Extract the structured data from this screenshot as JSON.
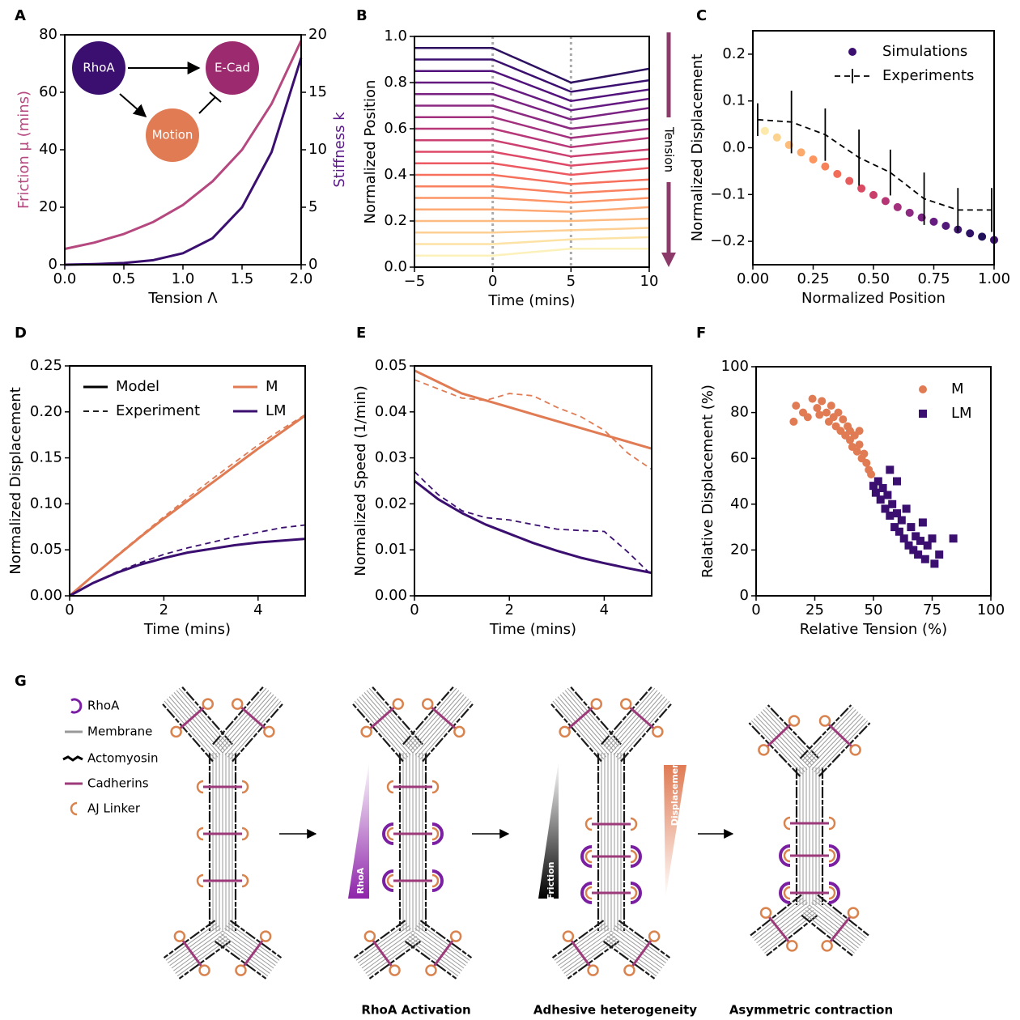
{
  "chart_data": [
    {
      "panel": "A",
      "type": "line",
      "xlabel": "Tension Λ",
      "ylabel": "Friction μ (mins)",
      "ylabel_color": "#b5487f",
      "y2label": "Stiffness k",
      "y2label_color": "#5b1a8a",
      "x": [
        0,
        0.25,
        0.5,
        0.75,
        1,
        1.25,
        1.5,
        1.75,
        2
      ],
      "xlim": [
        0,
        2
      ],
      "xticks": [
        {
          "value": 0,
          "label": "0.0"
        },
        {
          "value": 0.5,
          "label": "0.5"
        },
        {
          "value": 1,
          "label": "1.0"
        },
        {
          "value": 1.5,
          "label": "1.5"
        },
        {
          "value": 2,
          "label": "2.0"
        }
      ],
      "ylim": [
        0,
        80
      ],
      "yticks": [
        0,
        20,
        40,
        60,
        80
      ],
      "y2lim": [
        0,
        20
      ],
      "y2ticks": [
        0,
        5,
        10,
        15,
        20
      ],
      "series": [
        {
          "color": "#b5487f",
          "values": [
            5.5,
            7.7,
            10.7,
            14.9,
            20.8,
            29,
            40,
            56,
            78
          ]
        },
        {
          "color": "#3b0f70",
          "axis": "y2",
          "values": [
            0,
            0.05,
            0.15,
            0.4,
            1,
            2.3,
            5,
            9.8,
            18
          ]
        }
      ],
      "inset": {
        "nodes": [
          {
            "label": "RhoA",
            "color": "#3b0f70"
          },
          {
            "label": "E-Cad",
            "color": "#9c2a6e"
          },
          {
            "label": "Motion",
            "color": "#e07b54"
          }
        ]
      }
    },
    {
      "panel": "B",
      "type": "line",
      "xlabel": "Time (mins)",
      "ylabel": "Normalized Position",
      "annotation": "Tension",
      "annotation_color": "#8c3a6a",
      "x": [
        -5,
        0,
        5,
        10
      ],
      "xlim": [
        -5,
        10
      ],
      "xticks": [
        {
          "value": -5,
          "label": "−5"
        },
        0,
        5,
        10
      ],
      "ylim": [
        0,
        1
      ],
      "yticks": [
        {
          "value": 0,
          "label": "0.0"
        },
        {
          "value": 0.2,
          "label": "0.2"
        },
        {
          "value": 0.4,
          "label": "0.4"
        },
        {
          "value": 0.6,
          "label": "0.6"
        },
        {
          "value": 0.8,
          "label": "0.8"
        },
        {
          "value": 1,
          "label": "1.0"
        }
      ],
      "vlines": [
        0,
        5
      ],
      "vline_color": "#aaaaaa",
      "series": [
        {
          "color": "#2d1160",
          "values": [
            0.95,
            0.95,
            0.8,
            0.86
          ]
        },
        {
          "color": "#3b0f70",
          "values": [
            0.9,
            0.9,
            0.76,
            0.81
          ]
        },
        {
          "color": "#51127c",
          "values": [
            0.85,
            0.85,
            0.72,
            0.77
          ]
        },
        {
          "color": "#641a80",
          "values": [
            0.8,
            0.8,
            0.68,
            0.73
          ]
        },
        {
          "color": "#7a2282",
          "values": [
            0.75,
            0.75,
            0.64,
            0.69
          ]
        },
        {
          "color": "#8c2981",
          "values": [
            0.7,
            0.7,
            0.6,
            0.64
          ]
        },
        {
          "color": "#a3307e",
          "values": [
            0.65,
            0.65,
            0.56,
            0.6
          ]
        },
        {
          "color": "#b73779",
          "values": [
            0.6,
            0.6,
            0.52,
            0.56
          ]
        },
        {
          "color": "#cc3f71",
          "values": [
            0.55,
            0.55,
            0.48,
            0.51
          ]
        },
        {
          "color": "#de4968",
          "values": [
            0.5,
            0.5,
            0.44,
            0.47
          ]
        },
        {
          "color": "#ec5960",
          "values": [
            0.45,
            0.45,
            0.4,
            0.43
          ]
        },
        {
          "color": "#f6705c",
          "values": [
            0.4,
            0.4,
            0.36,
            0.38
          ]
        },
        {
          "color": "#fa815f",
          "values": [
            0.35,
            0.35,
            0.32,
            0.34
          ]
        },
        {
          "color": "#fd9567",
          "values": [
            0.3,
            0.3,
            0.28,
            0.3
          ]
        },
        {
          "color": "#fea973",
          "values": [
            0.25,
            0.25,
            0.24,
            0.26
          ]
        },
        {
          "color": "#febb81",
          "values": [
            0.2,
            0.2,
            0.2,
            0.21
          ]
        },
        {
          "color": "#fecf92",
          "values": [
            0.15,
            0.15,
            0.16,
            0.17
          ]
        },
        {
          "color": "#fde2a5",
          "values": [
            0.1,
            0.1,
            0.12,
            0.13
          ]
        },
        {
          "color": "#fcf1bb",
          "values": [
            0.05,
            0.05,
            0.08,
            0.08
          ]
        }
      ]
    },
    {
      "panel": "C",
      "type": "scatter",
      "xlabel": "Normalized Position",
      "ylabel": "Normalized Displacement",
      "legend": "upper right",
      "xlim": [
        0,
        1
      ],
      "xticks": [
        {
          "value": 0,
          "label": "0.00"
        },
        {
          "value": 0.25,
          "label": "0.25"
        },
        {
          "value": 0.5,
          "label": "0.50"
        },
        {
          "value": 0.75,
          "label": "0.75"
        },
        {
          "value": 1,
          "label": "1.00"
        }
      ],
      "ylim": [
        -0.25,
        0.25
      ],
      "yticks": [
        {
          "value": -0.2,
          "label": "−0.2"
        },
        {
          "value": -0.1,
          "label": "−0.1"
        },
        {
          "value": 0,
          "label": "0.0"
        },
        {
          "value": 0.1,
          "label": "0.1"
        },
        {
          "value": 0.2,
          "label": "0.2"
        }
      ],
      "series": [
        {
          "name": "Simulations",
          "mode": "markers",
          "marker": "circle",
          "color": "#3b0f70",
          "point_colors": [
            "#fde9a9",
            "#fcd38e",
            "#fdbd7a",
            "#fda96b",
            "#fc9560",
            "#f8815a",
            "#f26d58",
            "#e85b5c",
            "#da4a63",
            "#ca3e6b",
            "#b73575",
            "#a3307c",
            "#8e2a81",
            "#7a2382",
            "#661c81",
            "#521b7a",
            "#3f1670",
            "#2f1165",
            "#21105a",
            "#3b0f70"
          ],
          "x": [
            0.05,
            0.1,
            0.15,
            0.2,
            0.25,
            0.3,
            0.35,
            0.4,
            0.45,
            0.5,
            0.55,
            0.6,
            0.65,
            0.7,
            0.75,
            0.8,
            0.85,
            0.9,
            0.95,
            1
          ],
          "values": [
            0.036,
            0.022,
            0.006,
            -0.01,
            -0.025,
            -0.04,
            -0.056,
            -0.071,
            -0.087,
            -0.101,
            -0.114,
            -0.127,
            -0.139,
            -0.149,
            -0.158,
            -0.167,
            -0.175,
            -0.183,
            -0.19,
            -0.197
          ]
        },
        {
          "name": "Experiments",
          "mode": "line",
          "dashed": true,
          "color": "#000000",
          "x": [
            0.02,
            0.16,
            0.3,
            0.44,
            0.57,
            0.71,
            0.85,
            0.99
          ],
          "values": [
            0.06,
            0.055,
            0.028,
            -0.021,
            -0.053,
            -0.109,
            -0.133,
            -0.133
          ],
          "errors": [
            0.035,
            0.067,
            0.056,
            0.06,
            0.049,
            0.056,
            0.047,
            0.047
          ]
        }
      ]
    },
    {
      "panel": "D",
      "type": "line",
      "xlabel": "Time (mins)",
      "ylabel": "Normalized Displacement",
      "x": [
        0,
        0.5,
        1,
        1.5,
        2,
        2.5,
        3,
        3.5,
        4,
        4.5,
        5
      ],
      "xlim": [
        0,
        5
      ],
      "xticks": [
        0,
        2,
        4
      ],
      "ylim": [
        0,
        0.25
      ],
      "yticks": [
        {
          "value": 0,
          "label": "0.00"
        },
        {
          "value": 0.05,
          "label": "0.05"
        },
        {
          "value": 0.1,
          "label": "0.10"
        },
        {
          "value": 0.15,
          "label": "0.15"
        },
        {
          "value": 0.2,
          "label": "0.20"
        },
        {
          "value": 0.25,
          "label": "0.25"
        }
      ],
      "legend_entries": [
        {
          "label": "Model",
          "color": "#000000",
          "dashed": false
        },
        {
          "label": "Experiment",
          "color": "#000000",
          "dashed": true
        },
        {
          "label": "M",
          "color": "#e07b54",
          "dashed": false
        },
        {
          "label": "LM",
          "color": "#3b0f70",
          "dashed": false
        }
      ],
      "series": [
        {
          "color": "#e07b54",
          "values": [
            0,
            0.022,
            0.043,
            0.064,
            0.084,
            0.103,
            0.122,
            0.141,
            0.16,
            0.178,
            0.196
          ]
        },
        {
          "color": "#e07b54",
          "dashed": true,
          "values": [
            0,
            0.022,
            0.044,
            0.065,
            0.086,
            0.106,
            0.126,
            0.145,
            0.164,
            0.181,
            0.197
          ]
        },
        {
          "color": "#3b0f70",
          "values": [
            0,
            0.014,
            0.025,
            0.034,
            0.041,
            0.047,
            0.051,
            0.055,
            0.058,
            0.06,
            0.062
          ]
        },
        {
          "color": "#3b0f70",
          "dashed": true,
          "values": [
            0,
            0.014,
            0.026,
            0.036,
            0.045,
            0.052,
            0.058,
            0.064,
            0.069,
            0.074,
            0.077
          ]
        }
      ]
    },
    {
      "panel": "E",
      "type": "line",
      "xlabel": "Time (mins)",
      "ylabel": "Normalized Speed (1/min)",
      "x": [
        0,
        0.5,
        1,
        1.5,
        2,
        2.5,
        3,
        3.5,
        4,
        4.5,
        5
      ],
      "xlim": [
        0,
        5
      ],
      "xticks": [
        0,
        2,
        4
      ],
      "ylim": [
        0,
        0.05
      ],
      "yticks": [
        {
          "value": 0,
          "label": "0.00"
        },
        {
          "value": 0.01,
          "label": "0.01"
        },
        {
          "value": 0.02,
          "label": "0.02"
        },
        {
          "value": 0.03,
          "label": "0.03"
        },
        {
          "value": 0.04,
          "label": "0.04"
        },
        {
          "value": 0.05,
          "label": "0.05"
        }
      ],
      "series": [
        {
          "color": "#e07b54",
          "values": [
            0.049,
            0.0465,
            0.044,
            0.0425,
            0.041,
            0.0395,
            0.038,
            0.0365,
            0.035,
            0.0335,
            0.032
          ]
        },
        {
          "color": "#e07b54",
          "dashed": true,
          "values": [
            0.047,
            0.045,
            0.043,
            0.0425,
            0.044,
            0.0435,
            0.041,
            0.039,
            0.036,
            0.031,
            0.0275
          ]
        },
        {
          "color": "#3b0f70",
          "values": [
            0.025,
            0.021,
            0.018,
            0.0155,
            0.0135,
            0.0115,
            0.0098,
            0.0083,
            0.0071,
            0.006,
            0.005
          ]
        },
        {
          "color": "#3b0f70",
          "dashed": true,
          "values": [
            0.027,
            0.022,
            0.0185,
            0.017,
            0.0165,
            0.0155,
            0.0145,
            0.0142,
            0.014,
            0.0095,
            0.0045
          ]
        }
      ]
    },
    {
      "panel": "F",
      "type": "scatter",
      "xlabel": "Relative Tension (%)",
      "ylabel": "Relative Displacement (%)",
      "legend": "upper right",
      "xlim": [
        0,
        100
      ],
      "xticks": [
        0,
        25,
        50,
        75,
        100
      ],
      "ylim": [
        0,
        100
      ],
      "yticks": [
        0,
        20,
        40,
        60,
        80,
        100
      ],
      "series": [
        {
          "name": "M",
          "mode": "markers",
          "marker": "circle",
          "color": "#e07b54",
          "x": [
            16,
            17,
            20,
            22,
            24,
            26,
            27,
            28,
            30,
            31,
            32,
            33,
            34,
            35,
            36,
            37,
            38,
            39,
            40,
            40,
            41,
            42,
            43,
            44,
            45,
            46,
            47,
            48,
            49,
            44
          ],
          "values": [
            76,
            83,
            80,
            78,
            86,
            82,
            79,
            85,
            80,
            76,
            83,
            78,
            74,
            80,
            72,
            77,
            70,
            74,
            68,
            72,
            65,
            70,
            63,
            66,
            60,
            62,
            58,
            55,
            53,
            72
          ]
        },
        {
          "name": "LM",
          "mode": "markers",
          "marker": "square",
          "color": "#3b0f70",
          "x": [
            50,
            51,
            52,
            53,
            54,
            55,
            56,
            57,
            57,
            58,
            59,
            60,
            60,
            61,
            62,
            63,
            64,
            65,
            66,
            67,
            68,
            69,
            70,
            71,
            72,
            73,
            75,
            76,
            78,
            84
          ],
          "values": [
            48,
            45,
            50,
            42,
            47,
            38,
            44,
            35,
            55,
            40,
            30,
            36,
            50,
            28,
            33,
            25,
            38,
            22,
            30,
            20,
            26,
            18,
            24,
            32,
            16,
            22,
            25,
            14,
            18,
            25
          ]
        }
      ]
    }
  ],
  "diagram": {
    "panel": "G",
    "legend": [
      "RhoA",
      "Membrane",
      "Actomyosin",
      "Cadherins",
      "AJ Linker"
    ],
    "gradients": [
      "RhoA",
      "Friction",
      "Displacement"
    ],
    "steps": [
      "RhoA Activation",
      "Adhesive heterogeneity",
      "Asymmetric contraction"
    ]
  }
}
